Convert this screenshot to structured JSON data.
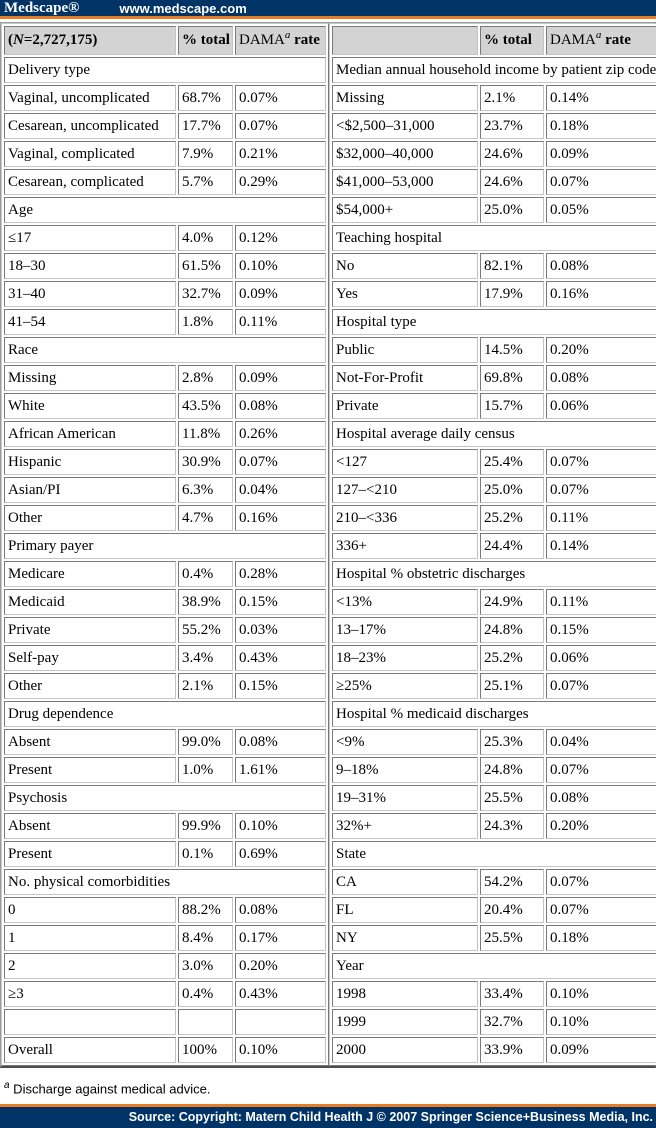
{
  "top_bar": {
    "logo": "Medscape®",
    "url": "www.medscape.com"
  },
  "colors": {
    "navy": "#003366",
    "orange": "#e87e21",
    "header_bg": "#d3d3d3",
    "cell_border": "#7a7a7a",
    "text": "#000000"
  },
  "table_header": {
    "n_prefix": "(",
    "n_italic": "N",
    "n_suffix": "=2,727,175)",
    "pct_total": "% total",
    "dama": "DAMA",
    "dama_sup": "a",
    "rate": " rate",
    "blank": ""
  },
  "left_table": {
    "rows": [
      {
        "t": "section",
        "label": "Delivery type",
        "indent": 0
      },
      {
        "t": "data",
        "label": "Vaginal, uncomplicated",
        "indent": 1,
        "total": "68.7%",
        "dama": "0.07%"
      },
      {
        "t": "data",
        "label": "Cesarean, uncomplicated",
        "indent": 1,
        "total": "17.7%",
        "dama": "0.07%"
      },
      {
        "t": "data",
        "label": "Vaginal, complicated",
        "indent": 1,
        "total": "7.9%",
        "dama": "0.21%"
      },
      {
        "t": "data",
        "label": "Cesarean, complicated",
        "indent": 1,
        "total": "5.7%",
        "dama": "0.29%"
      },
      {
        "t": "section",
        "label": "Age",
        "indent": 0
      },
      {
        "t": "data",
        "label": "≤17",
        "indent": 1,
        "total": "4.0%",
        "dama": "0.12%"
      },
      {
        "t": "data",
        "label": "18–30",
        "indent": 1,
        "total": "61.5%",
        "dama": "0.10%"
      },
      {
        "t": "data",
        "label": "31–40",
        "indent": 1,
        "total": "32.7%",
        "dama": "0.09%"
      },
      {
        "t": "data",
        "label": "41–54",
        "indent": 1,
        "total": "1.8%",
        "dama": "0.11%"
      },
      {
        "t": "section",
        "label": "Race",
        "indent": 0
      },
      {
        "t": "data",
        "label": "Missing",
        "indent": 1,
        "total": "2.8%",
        "dama": "0.09%"
      },
      {
        "t": "data",
        "label": "White",
        "indent": 1,
        "total": "43.5%",
        "dama": "0.08%"
      },
      {
        "t": "data",
        "label": "African American",
        "indent": 1,
        "total": "11.8%",
        "dama": "0.26%"
      },
      {
        "t": "data",
        "label": "Hispanic",
        "indent": 1,
        "total": "30.9%",
        "dama": "0.07%"
      },
      {
        "t": "data",
        "label": "Asian/PI",
        "indent": 1,
        "total": "6.3%",
        "dama": "0.04%"
      },
      {
        "t": "data",
        "label": "Other",
        "indent": 1,
        "total": "4.7%",
        "dama": "0.16%"
      },
      {
        "t": "section",
        "label": "Primary payer",
        "indent": 0
      },
      {
        "t": "data",
        "label": "Medicare",
        "indent": 1,
        "total": "0.4%",
        "dama": "0.28%"
      },
      {
        "t": "data",
        "label": "Medicaid",
        "indent": 1,
        "total": "38.9%",
        "dama": "0.15%"
      },
      {
        "t": "data",
        "label": "Private",
        "indent": 1,
        "total": "55.2%",
        "dama": "0.03%"
      },
      {
        "t": "data",
        "label": "Self-pay",
        "indent": 1,
        "total": "3.4%",
        "dama": "0.43%"
      },
      {
        "t": "data",
        "label": "Other",
        "indent": 1,
        "total": "2.1%",
        "dama": "0.15%"
      },
      {
        "t": "section",
        "label": "Drug dependence",
        "indent": 0
      },
      {
        "t": "data",
        "label": "Absent",
        "indent": 1,
        "total": "99.0%",
        "dama": "0.08%"
      },
      {
        "t": "data",
        "label": "Present",
        "indent": 1,
        "total": "1.0%",
        "dama": "1.61%"
      },
      {
        "t": "section",
        "label": "Psychosis",
        "indent": 1
      },
      {
        "t": "data",
        "label": "Absent",
        "indent": 1,
        "total": "99.9%",
        "dama": "0.10%"
      },
      {
        "t": "data",
        "label": "Present",
        "indent": 1,
        "total": "0.1%",
        "dama": "0.69%"
      },
      {
        "t": "section",
        "label": "No. physical comorbidities",
        "indent": 0
      },
      {
        "t": "data",
        "label": "0",
        "indent": 2,
        "total": "88.2%",
        "dama": "0.08%"
      },
      {
        "t": "data",
        "label": "1",
        "indent": 2,
        "total": "8.4%",
        "dama": "0.17%"
      },
      {
        "t": "data",
        "label": "2",
        "indent": 2,
        "total": "3.0%",
        "dama": "0.20%"
      },
      {
        "t": "data",
        "label": "≥3",
        "indent": 1,
        "total": "0.4%",
        "dama": "0.43%"
      },
      {
        "t": "empty"
      },
      {
        "t": "data",
        "label": "Overall",
        "indent": 0,
        "total": "100%",
        "dama": "0.10%"
      }
    ]
  },
  "right_table": {
    "rows": [
      {
        "t": "section",
        "label": "Median annual household income by patient zip code",
        "indent": 0
      },
      {
        "t": "data",
        "label": "Missing",
        "indent": 1,
        "total": "2.1%",
        "dama": "0.14%"
      },
      {
        "t": "data",
        "label": "<$2,500–31,000",
        "indent": 0,
        "total": "23.7%",
        "dama": "0.18%"
      },
      {
        "t": "data",
        "label": "$32,000–40,000",
        "indent": 1,
        "total": "24.6%",
        "dama": "0.09%"
      },
      {
        "t": "data",
        "label": "$41,000–53,000",
        "indent": 1,
        "total": "24.6%",
        "dama": "0.07%"
      },
      {
        "t": "data",
        "label": "$54,000+",
        "indent": 1,
        "total": "25.0%",
        "dama": "0.05%"
      },
      {
        "t": "section",
        "label": "Teaching hospital",
        "indent": 0
      },
      {
        "t": "data",
        "label": "No",
        "indent": 1,
        "total": "82.1%",
        "dama": "0.08%"
      },
      {
        "t": "data",
        "label": "Yes",
        "indent": 1,
        "total": "17.9%",
        "dama": "0.16%"
      },
      {
        "t": "section",
        "label": "Hospital type",
        "indent": 0
      },
      {
        "t": "data",
        "label": "Public",
        "indent": 1,
        "total": "14.5%",
        "dama": "0.20%"
      },
      {
        "t": "data",
        "label": "Not-For-Profit",
        "indent": 1,
        "total": "69.8%",
        "dama": "0.08%"
      },
      {
        "t": "data",
        "label": "Private",
        "indent": 1,
        "total": "15.7%",
        "dama": "0.06%"
      },
      {
        "t": "section",
        "label": "Hospital average daily census",
        "indent": 0
      },
      {
        "t": "data",
        "label": "<127",
        "indent": 1,
        "total": "25.4%",
        "dama": "0.07%"
      },
      {
        "t": "data",
        "label": "127–<210",
        "indent": 1,
        "total": "25.0%",
        "dama": "0.07%"
      },
      {
        "t": "data",
        "label": "210–<336",
        "indent": 1,
        "total": "25.2%",
        "dama": "0.11%"
      },
      {
        "t": "data",
        "label": "336+",
        "indent": 1,
        "total": "24.4%",
        "dama": "0.14%"
      },
      {
        "t": "section",
        "label": "Hospital % obstetric discharges",
        "indent": 0
      },
      {
        "t": "data",
        "label": "<13%",
        "indent": 1,
        "total": "24.9%",
        "dama": "0.11%"
      },
      {
        "t": "data",
        "label": "13–17%",
        "indent": 1,
        "total": "24.8%",
        "dama": "0.15%"
      },
      {
        "t": "data",
        "label": "18–23%",
        "indent": 1,
        "total": "25.2%",
        "dama": "0.06%"
      },
      {
        "t": "data",
        "label": "≥25%",
        "indent": 1,
        "total": "25.1%",
        "dama": "0.07%"
      },
      {
        "t": "section",
        "label": "Hospital % medicaid discharges",
        "indent": 0
      },
      {
        "t": "data",
        "label": "<9%",
        "indent": 1,
        "total": "25.3%",
        "dama": "0.04%"
      },
      {
        "t": "data",
        "label": "9–18%",
        "indent": 1,
        "total": "24.8%",
        "dama": "0.07%"
      },
      {
        "t": "data",
        "label": "19–31%",
        "indent": 1,
        "total": "25.5%",
        "dama": "0.08%"
      },
      {
        "t": "data",
        "label": "32%+",
        "indent": 1,
        "total": "24.3%",
        "dama": "0.20%"
      },
      {
        "t": "section",
        "label": "State",
        "indent": 0
      },
      {
        "t": "data",
        "label": "CA",
        "indent": 1,
        "total": "54.2%",
        "dama": "0.07%"
      },
      {
        "t": "data",
        "label": "FL",
        "indent": 1,
        "total": "20.4%",
        "dama": "0.07%"
      },
      {
        "t": "data",
        "label": "NY",
        "indent": 1,
        "total": "25.5%",
        "dama": "0.18%"
      },
      {
        "t": "section",
        "label": "Year",
        "indent": 0
      },
      {
        "t": "data",
        "label": "1998",
        "indent": 1,
        "total": "33.4%",
        "dama": "0.10%"
      },
      {
        "t": "data",
        "label": "1999",
        "indent": 1,
        "total": "32.7%",
        "dama": "0.10%"
      },
      {
        "t": "data",
        "label": "2000",
        "indent": 1,
        "total": "33.9%",
        "dama": "0.09%"
      }
    ]
  },
  "footnote": {
    "sup": "a",
    "text": " Discharge against medical advice."
  },
  "bottom_bar": {
    "source": "Source: Copyright: Matern Child Health J © 2007 Springer Science+Business Media, Inc."
  }
}
